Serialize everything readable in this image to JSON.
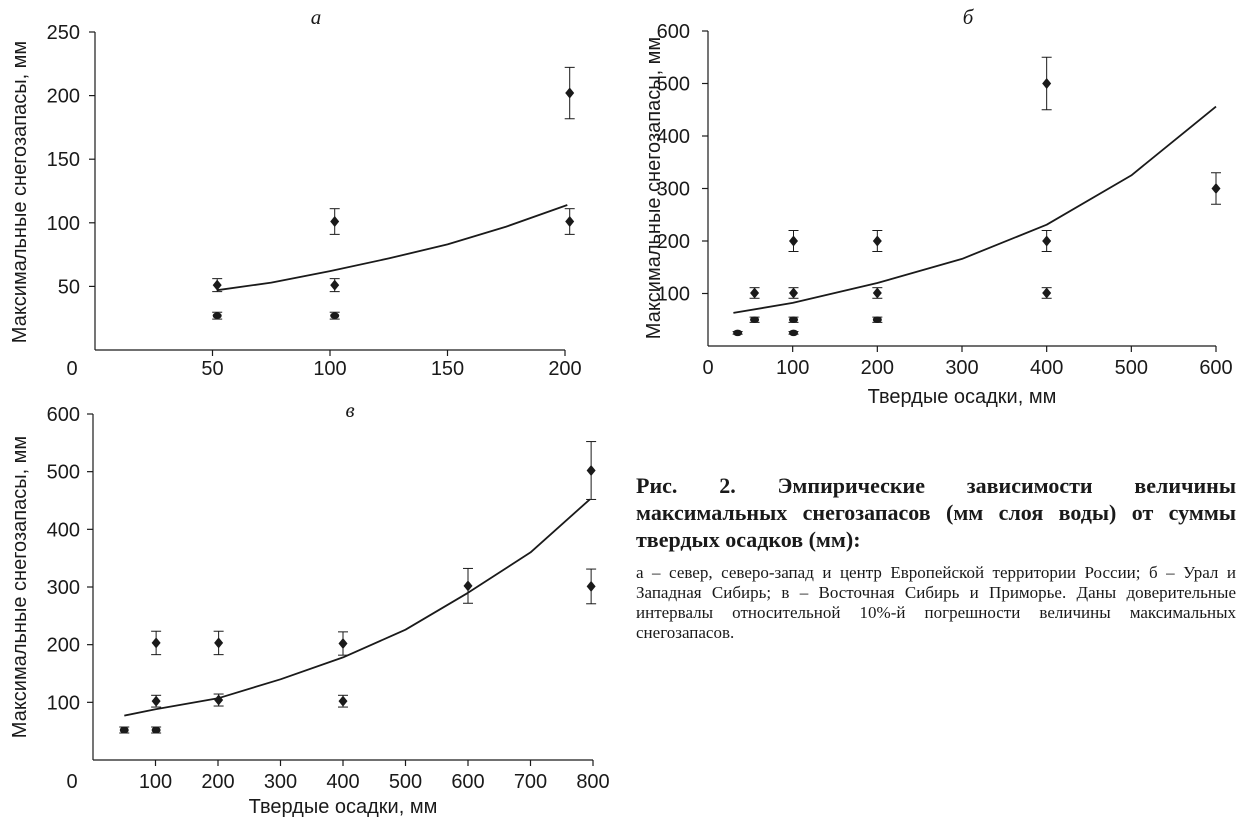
{
  "caption": {
    "title": "Рис. 2. Эмпирические зависимости величины максимальных снегозапасов (мм слоя воды) от суммы твердых осадков (мм):",
    "text": "а – север, северо-запад и центр Европейской территории России; б – Урал и Западная Сибирь; в – Восточная Сибирь и Приморье. Даны доверительные интервалы относительной 10%-й погрешности величины максимальных снегозапасов."
  },
  "chart_data": [
    {
      "panel": "a",
      "type": "scatter",
      "panel_label": "а",
      "xlabel": "",
      "ylabel": "Максимальные снегозапасы, мм",
      "xlim": [
        0,
        200
      ],
      "ylim": [
        0,
        250
      ],
      "xticks": [
        0,
        50,
        100,
        150,
        200
      ],
      "yticks": [
        50,
        100,
        150,
        200,
        250
      ],
      "x_origin_label": "0",
      "error_bars": "relative 10%",
      "points": [
        {
          "x": 52,
          "y": 27,
          "marker": "circle"
        },
        {
          "x": 52,
          "y": 51,
          "marker": "diamond"
        },
        {
          "x": 102,
          "y": 27,
          "marker": "circle"
        },
        {
          "x": 102,
          "y": 51,
          "marker": "diamond"
        },
        {
          "x": 102,
          "y": 101,
          "marker": "diamond"
        },
        {
          "x": 202,
          "y": 101,
          "marker": "diamond"
        },
        {
          "x": 202,
          "y": 202,
          "marker": "diamond"
        }
      ],
      "trend": {
        "type": "exponential",
        "x": [
          52,
          75,
          100,
          125,
          150,
          175,
          201
        ],
        "y": [
          47,
          53,
          62,
          72,
          83,
          97,
          114
        ]
      }
    },
    {
      "panel": "b",
      "type": "scatter",
      "panel_label": "б",
      "xlabel": "Твердые осадки, мм",
      "ylabel": "Максимальные снегозапасы, мм",
      "xlim": [
        0,
        600
      ],
      "ylim": [
        0,
        600
      ],
      "xticks": [
        0,
        100,
        200,
        300,
        400,
        500,
        600
      ],
      "yticks": [
        100,
        200,
        300,
        400,
        500,
        600
      ],
      "x_origin_label": "0",
      "error_bars": "relative 10%",
      "points": [
        {
          "x": 35,
          "y": 25,
          "marker": "circle"
        },
        {
          "x": 55,
          "y": 50,
          "marker": "circle"
        },
        {
          "x": 55,
          "y": 101,
          "marker": "diamond"
        },
        {
          "x": 101,
          "y": 25,
          "marker": "circle"
        },
        {
          "x": 101,
          "y": 50,
          "marker": "circle"
        },
        {
          "x": 101,
          "y": 101,
          "marker": "diamond"
        },
        {
          "x": 101,
          "y": 200,
          "marker": "diamond"
        },
        {
          "x": 200,
          "y": 50,
          "marker": "circle"
        },
        {
          "x": 200,
          "y": 101,
          "marker": "diamond"
        },
        {
          "x": 200,
          "y": 200,
          "marker": "diamond"
        },
        {
          "x": 400,
          "y": 101,
          "marker": "diamond"
        },
        {
          "x": 400,
          "y": 200,
          "marker": "diamond"
        },
        {
          "x": 400,
          "y": 500,
          "marker": "diamond"
        },
        {
          "x": 600,
          "y": 300,
          "marker": "diamond"
        }
      ],
      "trend": {
        "type": "exponential",
        "x": [
          30,
          100,
          200,
          300,
          400,
          500,
          600
        ],
        "y": [
          63,
          82,
          120,
          166,
          231,
          325,
          456
        ]
      }
    },
    {
      "panel": "c",
      "type": "scatter",
      "panel_label": "в",
      "xlabel": "Твердые осадки, мм",
      "ylabel": "Максимальные снегозапасы, мм",
      "xlim": [
        0,
        800
      ],
      "ylim": [
        0,
        600
      ],
      "xticks": [
        0,
        100,
        200,
        300,
        400,
        500,
        600,
        700,
        800
      ],
      "yticks": [
        100,
        200,
        300,
        400,
        500,
        600
      ],
      "x_origin_label": "0",
      "error_bars": "relative 10%",
      "points": [
        {
          "x": 50,
          "y": 52,
          "marker": "circle"
        },
        {
          "x": 101,
          "y": 52,
          "marker": "circle"
        },
        {
          "x": 101,
          "y": 102,
          "marker": "diamond"
        },
        {
          "x": 101,
          "y": 203,
          "marker": "diamond"
        },
        {
          "x": 201,
          "y": 104,
          "marker": "diamond"
        },
        {
          "x": 201,
          "y": 203,
          "marker": "diamond"
        },
        {
          "x": 400,
          "y": 102,
          "marker": "diamond"
        },
        {
          "x": 400,
          "y": 202,
          "marker": "diamond"
        },
        {
          "x": 600,
          "y": 302,
          "marker": "diamond"
        },
        {
          "x": 797,
          "y": 301,
          "marker": "diamond"
        },
        {
          "x": 797,
          "y": 502,
          "marker": "diamond"
        }
      ],
      "trend": {
        "type": "exponential",
        "x": [
          50,
          100,
          200,
          300,
          400,
          500,
          600,
          700,
          795
        ],
        "y": [
          77,
          88,
          107,
          140,
          178,
          226,
          290,
          360,
          452
        ]
      }
    }
  ]
}
